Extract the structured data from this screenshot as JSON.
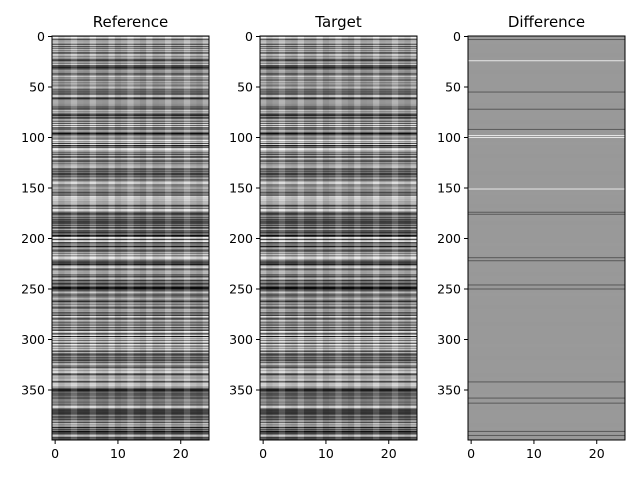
{
  "chart_data": [
    {
      "type": "heatmap",
      "title": "Reference",
      "colormap": "gray",
      "xlim": [
        0,
        24
      ],
      "ylim": [
        0,
        399
      ],
      "xticks": [
        "0",
        "10",
        "20"
      ],
      "yticks": [
        "0",
        "50",
        "100",
        "150",
        "200",
        "250",
        "300",
        "350"
      ]
    },
    {
      "type": "heatmap",
      "title": "Target",
      "colormap": "gray",
      "xlim": [
        0,
        24
      ],
      "ylim": [
        0,
        399
      ],
      "xticks": [
        "0",
        "10",
        "20"
      ],
      "yticks": [
        "0",
        "50",
        "100",
        "150",
        "200",
        "250",
        "300",
        "350"
      ]
    },
    {
      "type": "heatmap",
      "title": "Difference",
      "colormap": "gray",
      "xlim": [
        0,
        24
      ],
      "ylim": [
        0,
        399
      ],
      "xticks": [
        "0",
        "10",
        "20"
      ],
      "yticks": [
        "0",
        "50",
        "100",
        "150",
        "200",
        "250",
        "300",
        "350"
      ]
    }
  ]
}
